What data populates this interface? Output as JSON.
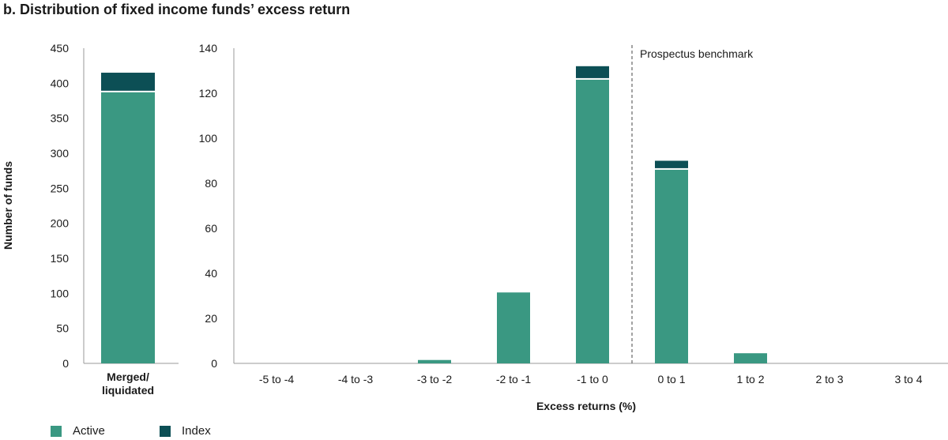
{
  "title": "b. Distribution of fixed income funds’ excess return",
  "colors": {
    "active": "#3a9882",
    "index": "#0c4f55",
    "axis": "#9a9a9a",
    "benchmark_line": "#666666"
  },
  "legend": [
    {
      "name": "Active",
      "color": "#3a9882"
    },
    {
      "name": "Index",
      "color": "#0c4f55"
    }
  ],
  "chart_data": [
    {
      "type": "bar",
      "stacked": true,
      "ylabel": "Number of funds",
      "ylim": [
        0,
        450
      ],
      "yticks": [
        0,
        50,
        100,
        150,
        200,
        250,
        300,
        350,
        400,
        450
      ],
      "categories": [
        "Merged/ liquidated"
      ],
      "category_lines": [
        "Merged/",
        "liquidated"
      ],
      "series": [
        {
          "name": "Active",
          "values": [
            387
          ]
        },
        {
          "name": "Index",
          "values": [
            28
          ]
        }
      ]
    },
    {
      "type": "bar",
      "stacked": true,
      "xlabel": "Excess returns (%)",
      "ylim": [
        0,
        140
      ],
      "yticks": [
        0,
        20,
        40,
        60,
        80,
        100,
        120,
        140
      ],
      "categories": [
        "-5 to -4",
        "-4 to -3",
        "-3 to -2",
        "-2 to -1",
        "-1 to 0",
        "0 to 1",
        "1 to 2",
        "2 to 3",
        "3 to 4"
      ],
      "series": [
        {
          "name": "Active",
          "values": [
            0,
            0,
            1.5,
            31.5,
            126,
            86,
            4.5,
            0,
            0
          ]
        },
        {
          "name": "Index",
          "values": [
            0,
            0,
            0,
            0,
            6,
            4,
            0,
            0,
            0
          ]
        }
      ],
      "annotation": {
        "text": "Prospectus benchmark",
        "x_boundary_after": "-1 to 0"
      }
    }
  ]
}
